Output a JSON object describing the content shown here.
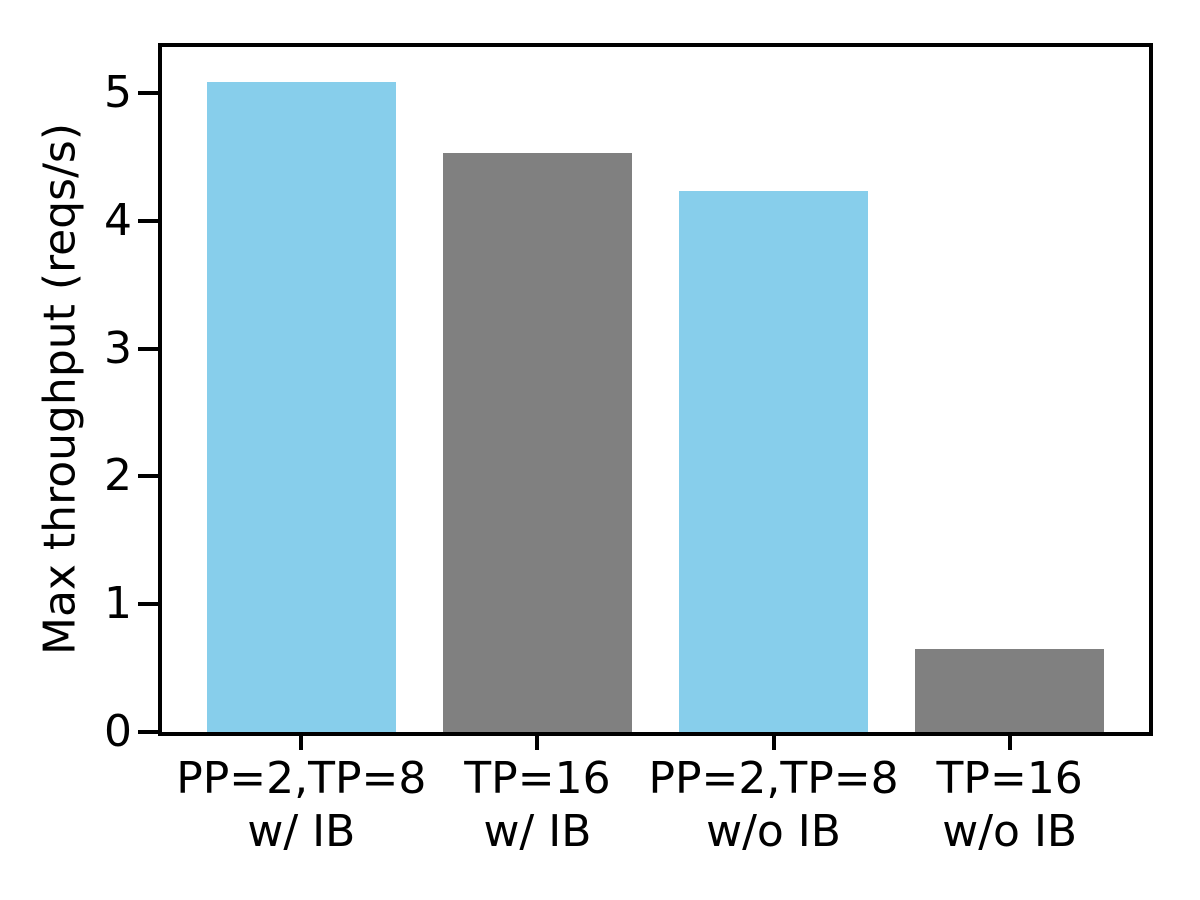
{
  "chart_data": {
    "type": "bar",
    "title": "",
    "xlabel": "",
    "ylabel": "Max throughput (reqs/s)",
    "categories": [
      "PP=2,TP=8\nw/ IB",
      "TP=16\nw/ IB",
      "PP=2,TP=8\nw/o IB",
      "TP=16\nw/o IB"
    ],
    "values": [
      5.09,
      4.53,
      4.23,
      0.65
    ],
    "bar_colors": [
      "#87CEEB",
      "#808080",
      "#87CEEB",
      "#808080"
    ],
    "bar_width": 0.8,
    "yticks": [
      0,
      1,
      2,
      3,
      4,
      5
    ],
    "ylim": [
      0,
      5.36
    ],
    "xlim": [
      -0.59,
      3.59
    ],
    "grid": false,
    "legend": null,
    "axis_color": "#000000",
    "background_color": "#ffffff"
  }
}
